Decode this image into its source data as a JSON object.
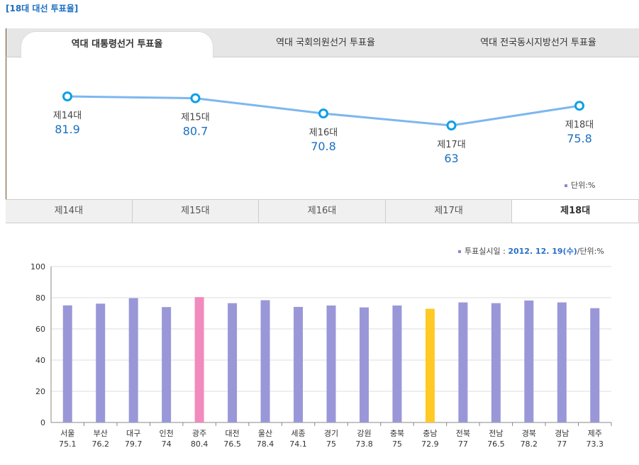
{
  "title": "[18대 대선 투표율]",
  "top_tabs": [
    {
      "label": "역대 대통령선거 투표율",
      "active": true
    },
    {
      "label": "역대 국회의원선거 투표율",
      "active": false
    },
    {
      "label": "역대 전국동시지방선거 투표율",
      "active": false
    }
  ],
  "line_unit": "단위:%",
  "sub_tabs": [
    {
      "label": "제14대",
      "active": false
    },
    {
      "label": "제15대",
      "active": false
    },
    {
      "label": "제16대",
      "active": false
    },
    {
      "label": "제17대",
      "active": false
    },
    {
      "label": "제18대",
      "active": true
    }
  ],
  "bar_legend": {
    "label": "투표실시일 : ",
    "date": "2012. 12. 19(수)",
    "unit": "/단위:%"
  },
  "colors": {
    "line": "#7db7ee",
    "marker": "#0aa0e6",
    "bar": "#9a97d8",
    "highlight_max": "#f28bbd",
    "highlight_min": "#ffc926",
    "value_text": "#1a6fc0"
  },
  "chart_data": [
    {
      "type": "line",
      "categories": [
        "제14대",
        "제15대",
        "제16대",
        "제17대",
        "제18대"
      ],
      "values": [
        81.9,
        80.7,
        70.8,
        63,
        75.8
      ]
    },
    {
      "type": "bar",
      "categories": [
        "서울",
        "부산",
        "대구",
        "인천",
        "광주",
        "대전",
        "울산",
        "세종",
        "경기",
        "강원",
        "충북",
        "충남",
        "전북",
        "전남",
        "경북",
        "경남",
        "제주"
      ],
      "values": [
        75.1,
        76.2,
        79.7,
        74,
        80.4,
        76.5,
        78.4,
        74.1,
        75,
        73.8,
        75,
        72.9,
        77,
        76.5,
        78.2,
        77,
        73.3
      ],
      "ylim": [
        0,
        100
      ],
      "yticks": [
        0,
        20,
        40,
        60,
        80,
        100
      ],
      "grid": true
    }
  ]
}
